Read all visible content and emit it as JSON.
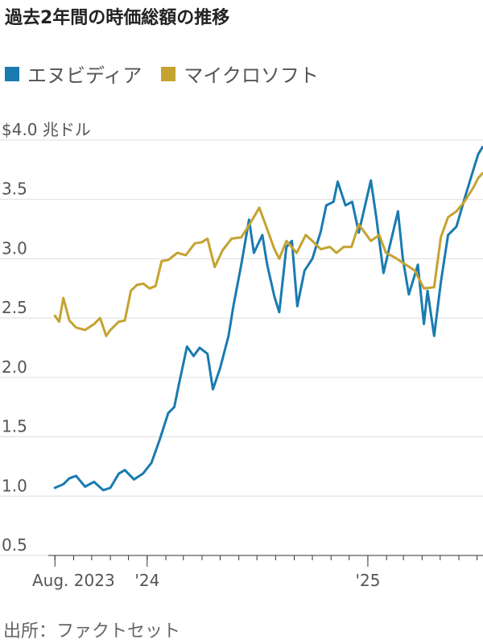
{
  "chart_data": {
    "type": "line",
    "title": "過去2年間の時価総額の推移",
    "ylabel": "$4.0 兆ドル",
    "ylim": [
      0.5,
      4.0
    ],
    "y_ticks": [
      {
        "value": 4.0,
        "label": "$4.0 兆ドル"
      },
      {
        "value": 3.5,
        "label": "3.5"
      },
      {
        "value": 3.0,
        "label": "3.0"
      },
      {
        "value": 2.5,
        "label": "2.5"
      },
      {
        "value": 2.0,
        "label": "2.0"
      },
      {
        "value": 1.5,
        "label": "1.5"
      },
      {
        "value": 1.0,
        "label": "1.0"
      },
      {
        "value": 0.5,
        "label": "0.5"
      }
    ],
    "xlim": [
      "2023-07-21",
      "2025-07-11"
    ],
    "x_tick_labels": [
      {
        "date": "2023-08-01",
        "label": "Aug. 2023"
      },
      {
        "date": "2024-01-01",
        "label": "'24"
      },
      {
        "date": "2025-01-01",
        "label": "'25"
      }
    ],
    "month_ticks": [
      "2023-08-01",
      "2023-09-01",
      "2023-10-01",
      "2023-11-01",
      "2023-12-01",
      "2024-01-01",
      "2024-02-01",
      "2024-03-01",
      "2024-04-01",
      "2024-05-01",
      "2024-06-01",
      "2024-07-01",
      "2024-08-01",
      "2024-09-01",
      "2024-10-01",
      "2024-11-01",
      "2024-12-01",
      "2025-01-01",
      "2025-02-01",
      "2025-03-01",
      "2025-04-01",
      "2025-05-01",
      "2025-06-01",
      "2025-07-01"
    ],
    "grid": true,
    "legend_position": "top-left",
    "series": [
      {
        "name": "エヌビディア",
        "color": "#1a7bb0",
        "points": [
          [
            "2023-08-01",
            1.07
          ],
          [
            "2023-08-15",
            1.1
          ],
          [
            "2023-08-25",
            1.15
          ],
          [
            "2023-09-05",
            1.17
          ],
          [
            "2023-09-20",
            1.08
          ],
          [
            "2023-10-05",
            1.12
          ],
          [
            "2023-10-20",
            1.05
          ],
          [
            "2023-11-01",
            1.07
          ],
          [
            "2023-11-15",
            1.19
          ],
          [
            "2023-11-25",
            1.22
          ],
          [
            "2023-12-10",
            1.14
          ],
          [
            "2023-12-25",
            1.19
          ],
          [
            "2024-01-08",
            1.28
          ],
          [
            "2024-01-22",
            1.48
          ],
          [
            "2024-02-05",
            1.7
          ],
          [
            "2024-02-15",
            1.75
          ],
          [
            "2024-02-23",
            1.95
          ],
          [
            "2024-03-07",
            2.26
          ],
          [
            "2024-03-18",
            2.18
          ],
          [
            "2024-03-28",
            2.25
          ],
          [
            "2024-04-10",
            2.2
          ],
          [
            "2024-04-19",
            1.9
          ],
          [
            "2024-05-01",
            2.08
          ],
          [
            "2024-05-15",
            2.35
          ],
          [
            "2024-05-23",
            2.6
          ],
          [
            "2024-06-05",
            2.95
          ],
          [
            "2024-06-18",
            3.33
          ],
          [
            "2024-06-26",
            3.05
          ],
          [
            "2024-07-10",
            3.2
          ],
          [
            "2024-07-18",
            2.95
          ],
          [
            "2024-07-30",
            2.68
          ],
          [
            "2024-08-07",
            2.55
          ],
          [
            "2024-08-19",
            3.1
          ],
          [
            "2024-08-28",
            3.15
          ],
          [
            "2024-09-06",
            2.6
          ],
          [
            "2024-09-18",
            2.9
          ],
          [
            "2024-10-01",
            3.0
          ],
          [
            "2024-10-15",
            3.23
          ],
          [
            "2024-10-24",
            3.45
          ],
          [
            "2024-11-05",
            3.48
          ],
          [
            "2024-11-12",
            3.65
          ],
          [
            "2024-11-25",
            3.45
          ],
          [
            "2024-12-06",
            3.48
          ],
          [
            "2024-12-17",
            3.22
          ],
          [
            "2025-01-06",
            3.66
          ],
          [
            "2025-01-15",
            3.35
          ],
          [
            "2025-01-27",
            2.88
          ],
          [
            "2025-02-05",
            3.08
          ],
          [
            "2025-02-20",
            3.4
          ],
          [
            "2025-02-28",
            3.0
          ],
          [
            "2025-03-10",
            2.7
          ],
          [
            "2025-03-25",
            2.95
          ],
          [
            "2025-04-04",
            2.45
          ],
          [
            "2025-04-10",
            2.73
          ],
          [
            "2025-04-21",
            2.35
          ],
          [
            "2025-05-02",
            2.8
          ],
          [
            "2025-05-14",
            3.2
          ],
          [
            "2025-05-28",
            3.27
          ],
          [
            "2025-06-10",
            3.5
          ],
          [
            "2025-06-25",
            3.75
          ],
          [
            "2025-07-03",
            3.88
          ],
          [
            "2025-07-10",
            3.94
          ]
        ]
      },
      {
        "name": "マイクロソフト",
        "color": "#c4a330",
        "points": [
          [
            "2023-08-01",
            2.52
          ],
          [
            "2023-08-08",
            2.47
          ],
          [
            "2023-08-15",
            2.67
          ],
          [
            "2023-08-25",
            2.48
          ],
          [
            "2023-09-05",
            2.42
          ],
          [
            "2023-09-20",
            2.4
          ],
          [
            "2023-10-05",
            2.45
          ],
          [
            "2023-10-15",
            2.5
          ],
          [
            "2023-10-25",
            2.35
          ],
          [
            "2023-11-01",
            2.4
          ],
          [
            "2023-11-15",
            2.47
          ],
          [
            "2023-11-25",
            2.48
          ],
          [
            "2023-12-05",
            2.73
          ],
          [
            "2023-12-15",
            2.78
          ],
          [
            "2023-12-26",
            2.79
          ],
          [
            "2024-01-05",
            2.75
          ],
          [
            "2024-01-15",
            2.77
          ],
          [
            "2024-01-25",
            2.98
          ],
          [
            "2024-02-05",
            2.99
          ],
          [
            "2024-02-20",
            3.05
          ],
          [
            "2024-03-05",
            3.03
          ],
          [
            "2024-03-20",
            3.13
          ],
          [
            "2024-04-01",
            3.14
          ],
          [
            "2024-04-10",
            3.17
          ],
          [
            "2024-04-22",
            2.93
          ],
          [
            "2024-05-05",
            3.07
          ],
          [
            "2024-05-20",
            3.17
          ],
          [
            "2024-06-05",
            3.18
          ],
          [
            "2024-06-20",
            3.3
          ],
          [
            "2024-07-05",
            3.43
          ],
          [
            "2024-07-18",
            3.25
          ],
          [
            "2024-07-30",
            3.08
          ],
          [
            "2024-08-07",
            3.0
          ],
          [
            "2024-08-19",
            3.15
          ],
          [
            "2024-09-05",
            3.05
          ],
          [
            "2024-09-20",
            3.2
          ],
          [
            "2024-10-01",
            3.15
          ],
          [
            "2024-10-15",
            3.08
          ],
          [
            "2024-10-30",
            3.1
          ],
          [
            "2024-11-10",
            3.05
          ],
          [
            "2024-11-22",
            3.1
          ],
          [
            "2024-12-05",
            3.1
          ],
          [
            "2024-12-17",
            3.29
          ],
          [
            "2025-01-06",
            3.15
          ],
          [
            "2025-01-20",
            3.2
          ],
          [
            "2025-01-31",
            3.05
          ],
          [
            "2025-02-15",
            3.01
          ],
          [
            "2025-03-05",
            2.95
          ],
          [
            "2025-03-20",
            2.9
          ],
          [
            "2025-04-04",
            2.75
          ],
          [
            "2025-04-21",
            2.76
          ],
          [
            "2025-05-02",
            3.18
          ],
          [
            "2025-05-14",
            3.35
          ],
          [
            "2025-05-28",
            3.4
          ],
          [
            "2025-06-10",
            3.48
          ],
          [
            "2025-06-25",
            3.6
          ],
          [
            "2025-07-03",
            3.68
          ],
          [
            "2025-07-10",
            3.72
          ]
        ]
      }
    ]
  },
  "source_label": "出所：ファクトセット"
}
